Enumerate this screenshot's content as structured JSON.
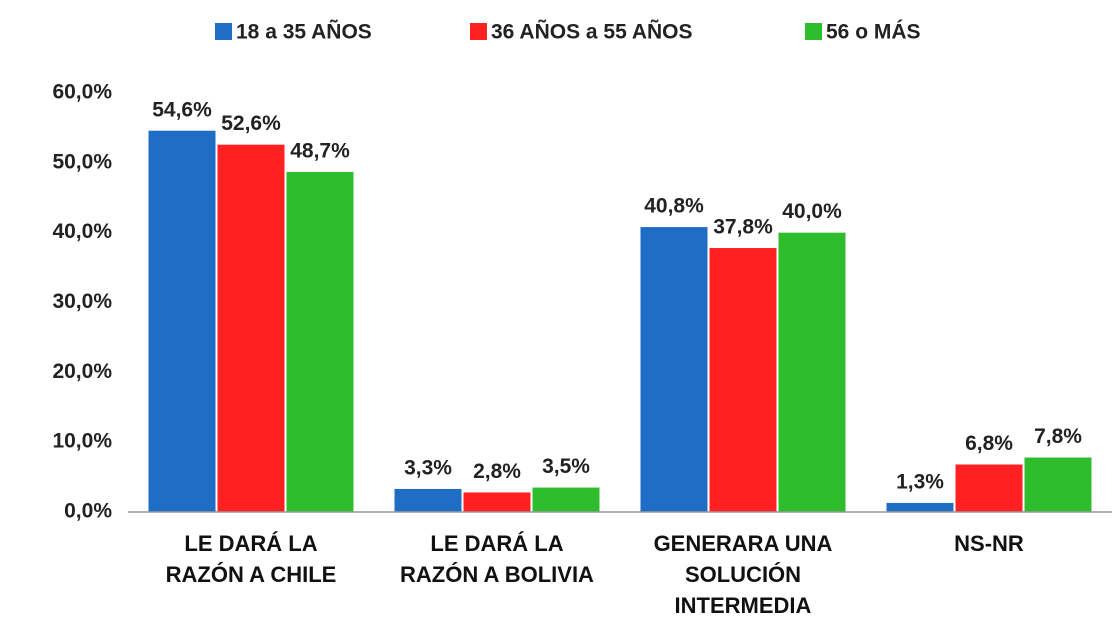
{
  "chart_data": {
    "type": "bar",
    "categories": [
      "LE DARÁ LA\nRAZÓN A CHILE",
      "LE DARÁ LA\nRAZÓN A BOLIVIA",
      "GENERARA UNA\nSOLUCIÓN\nINTERMEDIA",
      "NS-NR"
    ],
    "series": [
      {
        "name": "18 a 35 AÑOS",
        "color": "#1f6dc4",
        "values": [
          54.6,
          3.3,
          40.8,
          1.3
        ],
        "value_labels": [
          "54,6%",
          "3,3%",
          "40,8%",
          "1,3%"
        ]
      },
      {
        "name": "36 AÑOS a 55 AÑOS",
        "color": "#ff2121",
        "values": [
          52.6,
          2.8,
          37.8,
          6.8
        ],
        "value_labels": [
          "52,6%",
          "2,8%",
          "37,8%",
          "6,8%"
        ]
      },
      {
        "name": "56 o MÁS",
        "color": "#2dbd2d",
        "values": [
          48.7,
          3.5,
          40.0,
          7.8
        ],
        "value_labels": [
          "48,7%",
          "3,5%",
          "40,0%",
          "7,8%"
        ]
      }
    ],
    "ylim": [
      0,
      60
    ],
    "yticks": [
      {
        "value": 0,
        "label": "0,0%"
      },
      {
        "value": 10,
        "label": "10,0%"
      },
      {
        "value": 20,
        "label": "20,0%"
      },
      {
        "value": 30,
        "label": "30,0%"
      },
      {
        "value": 40,
        "label": "40,0%"
      },
      {
        "value": 50,
        "label": "50,0%"
      },
      {
        "value": 60,
        "label": "60,0%"
      }
    ],
    "legend": "top",
    "grid": false
  }
}
